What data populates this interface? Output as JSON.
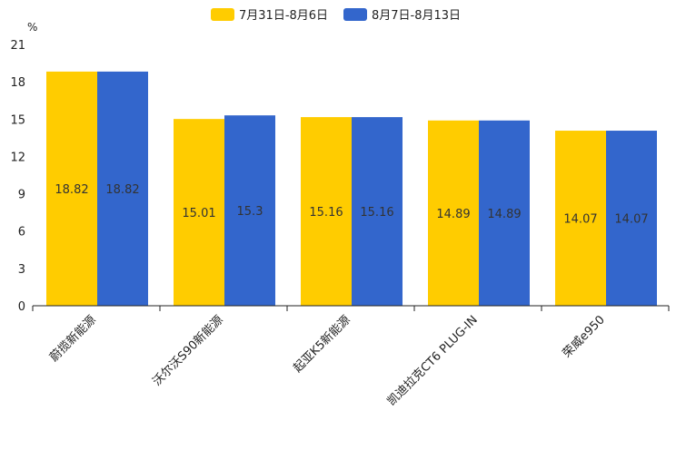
{
  "chart_data": {
    "type": "bar",
    "unit_label": "%",
    "categories": [
      "蔚揽新能源",
      "沃尔沃S90新能源",
      "起亚K5新能源",
      "凯迪拉克CT6 PLUG-IN",
      "荣威e950"
    ],
    "series": [
      {
        "name": "7月31日-8月6日",
        "color": "#FFCC00",
        "values": [
          18.82,
          15.01,
          15.16,
          14.89,
          14.07
        ]
      },
      {
        "name": "8月7日-8月13日",
        "color": "#3366CC",
        "values": [
          18.82,
          15.3,
          15.16,
          14.89,
          14.07
        ]
      }
    ],
    "ylim": [
      0,
      21
    ],
    "yticks": [
      0,
      3,
      6,
      9,
      12,
      15,
      18,
      21
    ],
    "legend_position": "top-center",
    "grid": false
  }
}
